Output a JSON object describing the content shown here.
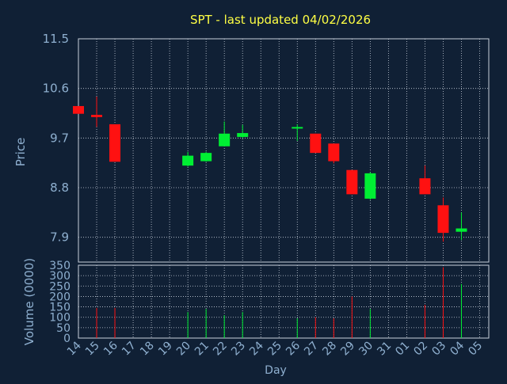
{
  "chart_data": [
    {
      "type": "candlestick",
      "title": "SPT - last updated 04/02/2026",
      "ylabel": "Price",
      "ylim": [
        7.45,
        11.5
      ],
      "yticks": [
        "11.5",
        "10.6",
        "9.7",
        "8.8",
        "7.9"
      ],
      "ytick_values": [
        11.5,
        10.6,
        9.7,
        8.8,
        7.9
      ],
      "grid": true,
      "categories": [
        "14",
        "15",
        "16",
        "17",
        "18",
        "19",
        "20",
        "21",
        "22",
        "23",
        "24",
        "25",
        "26",
        "27",
        "28",
        "29",
        "30",
        "31",
        "01",
        "02",
        "03",
        "04",
        "05"
      ],
      "candles": [
        {
          "day": "14",
          "open": 10.28,
          "high": 10.28,
          "low": 10.14,
          "close": 10.14
        },
        {
          "day": "15",
          "open": 10.12,
          "high": 10.45,
          "low": 9.9,
          "close": 10.08
        },
        {
          "day": "16",
          "open": 9.95,
          "high": 9.95,
          "low": 9.27,
          "close": 9.27
        },
        {
          "day": "20",
          "open": 9.2,
          "high": 9.45,
          "low": 9.18,
          "close": 9.38
        },
        {
          "day": "21",
          "open": 9.28,
          "high": 9.45,
          "low": 9.27,
          "close": 9.43
        },
        {
          "day": "22",
          "open": 9.55,
          "high": 10.0,
          "low": 9.55,
          "close": 9.78
        },
        {
          "day": "23",
          "open": 9.72,
          "high": 9.94,
          "low": 9.7,
          "close": 9.79
        },
        {
          "day": "26",
          "open": 9.9,
          "high": 9.95,
          "low": 9.65,
          "close": 9.9
        },
        {
          "day": "27",
          "open": 9.78,
          "high": 9.78,
          "low": 9.43,
          "close": 9.43
        },
        {
          "day": "28",
          "open": 9.6,
          "high": 9.6,
          "low": 9.24,
          "close": 9.28
        },
        {
          "day": "29",
          "open": 9.12,
          "high": 9.12,
          "low": 8.68,
          "close": 8.68
        },
        {
          "day": "30",
          "open": 8.6,
          "high": 9.08,
          "low": 8.58,
          "close": 9.06
        },
        {
          "day": "02",
          "open": 8.97,
          "high": 9.2,
          "low": 8.68,
          "close": 8.68
        },
        {
          "day": "03",
          "open": 8.48,
          "high": 8.62,
          "low": 7.82,
          "close": 7.98
        },
        {
          "day": "04",
          "open": 8.0,
          "high": 8.35,
          "low": 7.85,
          "close": 8.06
        }
      ]
    },
    {
      "type": "bar",
      "ylabel": "Volume (0000)",
      "xlabel": "Day",
      "ylim": [
        0,
        350
      ],
      "yticks": [
        "350",
        "300",
        "250",
        "200",
        "150",
        "100",
        "50",
        "0"
      ],
      "ytick_values": [
        350,
        300,
        250,
        200,
        150,
        100,
        50,
        0
      ],
      "categories": [
        "14",
        "15",
        "16",
        "17",
        "18",
        "19",
        "20",
        "21",
        "22",
        "23",
        "24",
        "25",
        "26",
        "27",
        "28",
        "29",
        "30",
        "31",
        "01",
        "02",
        "03",
        "04",
        "05"
      ],
      "bars": [
        {
          "day": "15",
          "value": 145,
          "direction": "down"
        },
        {
          "day": "16",
          "value": 145,
          "direction": "down"
        },
        {
          "day": "20",
          "value": 125,
          "direction": "up"
        },
        {
          "day": "21",
          "value": 140,
          "direction": "up"
        },
        {
          "day": "22",
          "value": 110,
          "direction": "up"
        },
        {
          "day": "23",
          "value": 125,
          "direction": "up"
        },
        {
          "day": "26",
          "value": 95,
          "direction": "up"
        },
        {
          "day": "27",
          "value": 100,
          "direction": "down"
        },
        {
          "day": "28",
          "value": 95,
          "direction": "down"
        },
        {
          "day": "29",
          "value": 200,
          "direction": "down"
        },
        {
          "day": "30",
          "value": 140,
          "direction": "up"
        },
        {
          "day": "02",
          "value": 160,
          "direction": "down"
        },
        {
          "day": "03",
          "value": 340,
          "direction": "down"
        },
        {
          "day": "04",
          "value": 260,
          "direction": "up"
        }
      ]
    }
  ],
  "colors": {
    "background": "#102035",
    "title": "#ffff44",
    "axis_text": "#8fb0d0",
    "grid": "#c8d0dc",
    "up": "#00ee33",
    "down": "#ff1111"
  }
}
